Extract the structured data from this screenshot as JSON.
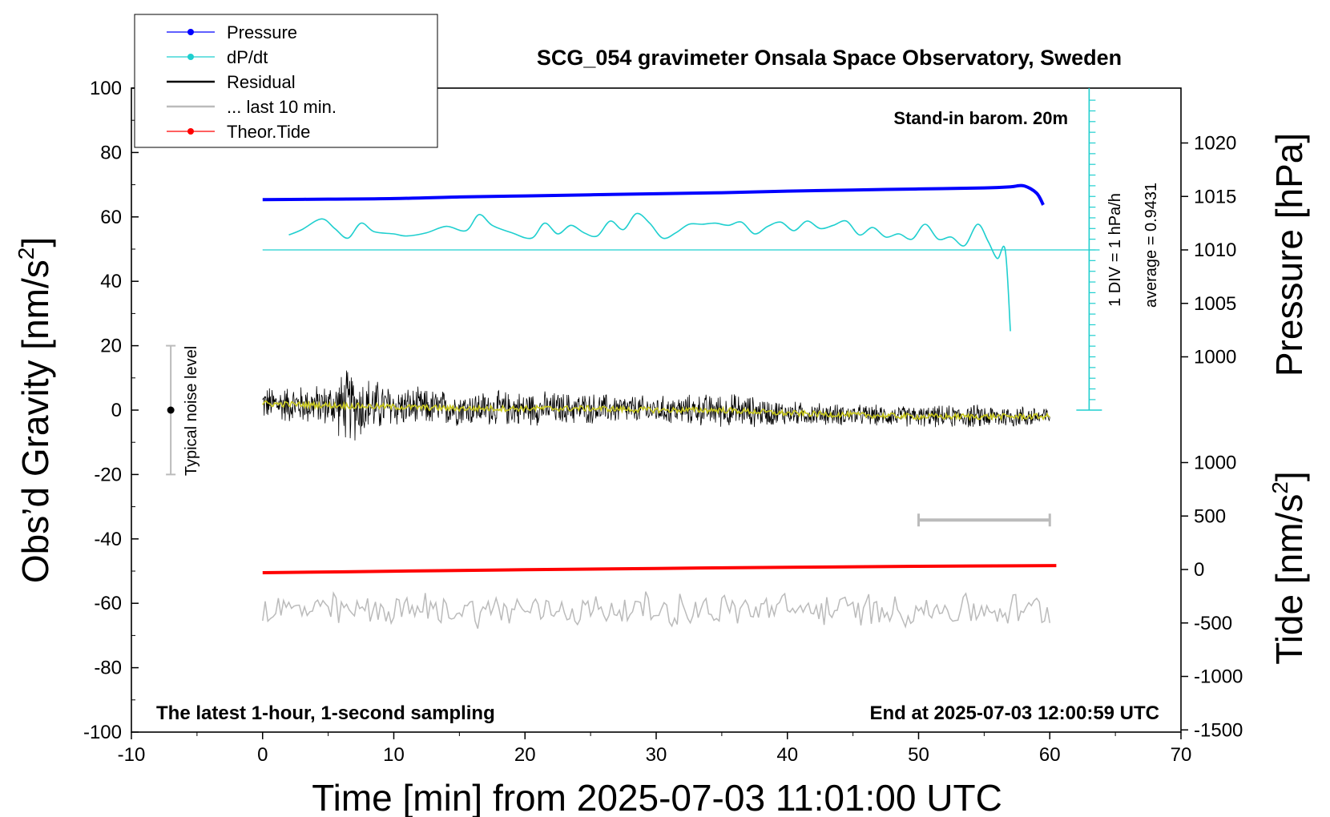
{
  "chart_data": {
    "type": "line",
    "title": "SCG_054 gravimeter Onsala Space Observatory, Sweden",
    "xlabel": "Time [min] from 2025-07-03 11:01:00 UTC",
    "ylabel_left": "Obs’d Gravity [nm/s",
    "ylabel_left_sup": "2",
    "ylabel_left_close": "]",
    "ylabel_right_pressure": "Pressure [hPa]",
    "ylabel_right_tide": "Tide [nm/s",
    "ylabel_right_tide_sup": "2",
    "ylabel_right_tide_close": "]",
    "xlim": [
      -10,
      70
    ],
    "ylim": [
      -100,
      100
    ],
    "x_ticks": [
      "-10",
      "0",
      "10",
      "20",
      "30",
      "40",
      "50",
      "60",
      "70"
    ],
    "y_ticks": [
      "100",
      "80",
      "60",
      "40",
      "20",
      "0",
      "-20",
      "-40",
      "-60",
      "-80",
      "-100"
    ],
    "pressure_ticks": [
      "1020",
      "1015",
      "1010",
      "1005",
      "1000"
    ],
    "pressure_tick_values": [
      1020,
      1015,
      1010,
      1005,
      1000
    ],
    "tide_ticks": [
      "1000",
      "500",
      "0",
      "-500",
      "-1000",
      "-1500"
    ],
    "tide_tick_values": [
      1000,
      500,
      0,
      -500,
      -1000,
      -1500
    ],
    "annotations": {
      "barometer": "Stand-in barom. 20m",
      "dpdt_scale": "1 DIV = 1 hPa/h",
      "dpdt_average": "average = 0.9431",
      "noise_label": "Typical noise level",
      "bottom_left": "The latest 1-hour, 1-second sampling",
      "bottom_right": "End at 2025-07-03 12:00:59 UTC"
    },
    "legend": {
      "placement": "top-left",
      "entries": [
        {
          "label": "Pressure",
          "color": "#0000ff",
          "marker": true
        },
        {
          "label": "dP/dt",
          "color": "#1fcfcf",
          "marker": true
        },
        {
          "label": "Residual",
          "color": "#000000",
          "marker": false
        },
        {
          "label": "... last 10 min.",
          "color": "#bbbbbb",
          "marker": false
        },
        {
          "label": "Theor.Tide",
          "color": "#ff0000",
          "marker": true
        }
      ]
    },
    "series": [
      {
        "name": "Pressure",
        "axis": "pressure_hPa",
        "color": "#0000ff",
        "x": [
          0,
          5,
          10,
          15,
          20,
          25,
          30,
          35,
          40,
          45,
          50,
          55,
          57,
          58,
          59,
          59.5
        ],
        "y": [
          1014.7,
          1014.75,
          1014.8,
          1014.95,
          1015.05,
          1015.15,
          1015.25,
          1015.35,
          1015.5,
          1015.6,
          1015.7,
          1015.8,
          1015.9,
          1016.0,
          1015.3,
          1014.2
        ]
      },
      {
        "name": "dP/dt",
        "axis": "dpdt_div",
        "color": "#1fcfcf",
        "x": [
          2.0,
          3.0,
          4.5,
          5.5,
          6.5,
          7.5,
          8.5,
          10.0,
          11.0,
          12.5,
          14.0,
          15.5,
          16.5,
          17.5,
          19.0,
          20.5,
          21.5,
          22.5,
          23.5,
          24.5,
          25.5,
          26.5,
          27.5,
          28.5,
          29.5,
          30.5,
          31.5,
          32.5,
          33.5,
          34.5,
          35.5,
          36.5,
          37.5,
          38.5,
          39.5,
          40.5,
          41.5,
          42.5,
          43.5,
          44.5,
          45.5,
          46.5,
          47.5,
          48.5,
          49.5,
          50.5,
          51.5,
          52.5,
          53.5,
          54.5,
          55.3,
          56.0,
          56.6,
          57.0
        ],
        "y": [
          1.4,
          1.9,
          2.9,
          2.0,
          1.1,
          2.5,
          1.7,
          1.5,
          1.3,
          1.6,
          2.2,
          1.8,
          3.3,
          2.3,
          1.6,
          1.1,
          2.5,
          1.5,
          2.3,
          1.6,
          1.3,
          2.7,
          1.9,
          3.4,
          2.5,
          1.1,
          1.6,
          2.4,
          2.4,
          2.5,
          2.3,
          2.6,
          1.5,
          2.2,
          2.6,
          1.8,
          2.7,
          2.0,
          2.3,
          2.7,
          1.4,
          2.1,
          1.2,
          1.5,
          1.0,
          2.4,
          1.0,
          1.2,
          0.4,
          2.4,
          0.8,
          -0.8,
          0.0,
          -7.6
        ]
      },
      {
        "name": "Residual",
        "axis": "gravity",
        "color": "#000000",
        "x": [
          0,
          5,
          6.5,
          10,
          15,
          20,
          25,
          30,
          36,
          40,
          45,
          50,
          55,
          60
        ],
        "amplitude": [
          5,
          6,
          11,
          6,
          5,
          5,
          4.5,
          4,
          5,
          3.5,
          3,
          3,
          3.5,
          3
        ]
      },
      {
        "name": "Residual smoothed",
        "axis": "gravity",
        "color": "#c8c81e",
        "x": [
          0,
          5,
          10,
          15,
          20,
          25,
          30,
          35,
          40,
          45,
          50,
          55,
          60
        ],
        "y": [
          2,
          1.5,
          1,
          0.5,
          0.5,
          0.5,
          0,
          0,
          -1,
          -1.5,
          -2,
          -2,
          -2
        ]
      },
      {
        "name": "... last 10 min.",
        "axis": "gravity",
        "color": "#bbbbbb",
        "x_range": [
          0,
          60
        ],
        "baseline": -62,
        "amplitude": 4
      },
      {
        "name": "Theor.Tide",
        "axis": "tide",
        "color": "#ff0000",
        "x": [
          0,
          10,
          20,
          30,
          40,
          50,
          60.5
        ],
        "y": [
          -30,
          -16,
          -2,
          10,
          21,
          30,
          37
        ]
      }
    ],
    "noise_bar": {
      "x": -7,
      "y_range": [
        -20,
        20
      ],
      "center": 0
    },
    "last10_bar": {
      "x_range": [
        50,
        60
      ],
      "y": -33
    },
    "dpdt_scale_bar": {
      "x": 63,
      "divisions": 15,
      "zero_at_y_pressure": 1010
    },
    "grid": false
  }
}
